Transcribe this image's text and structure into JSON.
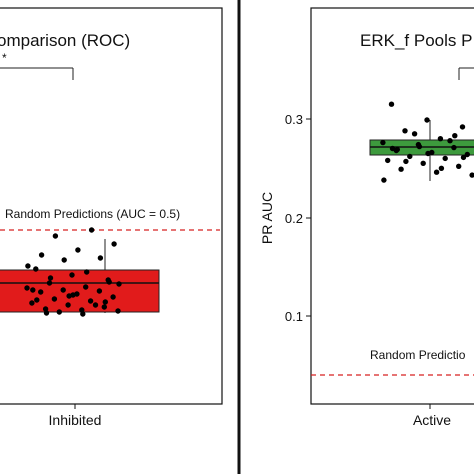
{
  "colors": {
    "roc_box": "#e11b1b",
    "pr_box": "#3d9a3d",
    "reference_line": "#d62020",
    "points": "#000000"
  },
  "chart_data": [
    {
      "type": "box",
      "title": "omparison (ROC)",
      "significance_label": "*",
      "xlabel": "",
      "ylabel": "",
      "categories": [
        "Inhibited"
      ],
      "box": {
        "q1": 0.528,
        "median": 0.548,
        "q3": 0.574,
        "whisker_low": 0.528,
        "whisker_high": 0.61
      },
      "reference": {
        "label": "Random Predictions (AUC = 0.5)",
        "value": 0.5
      },
      "points_y": [
        0.571,
        0.565,
        0.56,
        0.557,
        0.553,
        0.552,
        0.55,
        0.549,
        0.548,
        0.546,
        0.543,
        0.541,
        0.539,
        0.537,
        0.535,
        0.533,
        0.531,
        0.53,
        0.529,
        0.528,
        0.535,
        0.54,
        0.545,
        0.558,
        0.562,
        0.568,
        0.574,
        0.58,
        0.582,
        0.585,
        0.59,
        0.596,
        0.604,
        0.61,
        0.55,
        0.544,
        0.538,
        0.527,
        0.526,
        0.556
      ]
    },
    {
      "type": "box",
      "title": "ERK_f Pools P",
      "significance_label": "",
      "xlabel": "",
      "ylabel": "PR AUC",
      "categories": [
        "Active"
      ],
      "ylim": [
        0.05,
        0.34
      ],
      "yticks": [
        "0.1",
        "0.2",
        "0.3"
      ],
      "box": {
        "q1": 0.264,
        "median": 0.271,
        "q3": 0.279,
        "whisker_low": 0.244,
        "whisker_high": 0.3
      },
      "reference": {
        "label": "Random Predictio",
        "value": 0.037
      },
      "points_y": [
        0.315,
        0.299,
        0.292,
        0.288,
        0.28,
        0.276,
        0.274,
        0.271,
        0.268,
        0.266,
        0.264,
        0.262,
        0.26,
        0.258,
        0.255,
        0.252,
        0.249,
        0.246,
        0.243,
        0.285,
        0.278,
        0.27,
        0.265,
        0.261,
        0.257,
        0.25,
        0.238,
        0.272,
        0.283,
        0.269
      ]
    }
  ]
}
